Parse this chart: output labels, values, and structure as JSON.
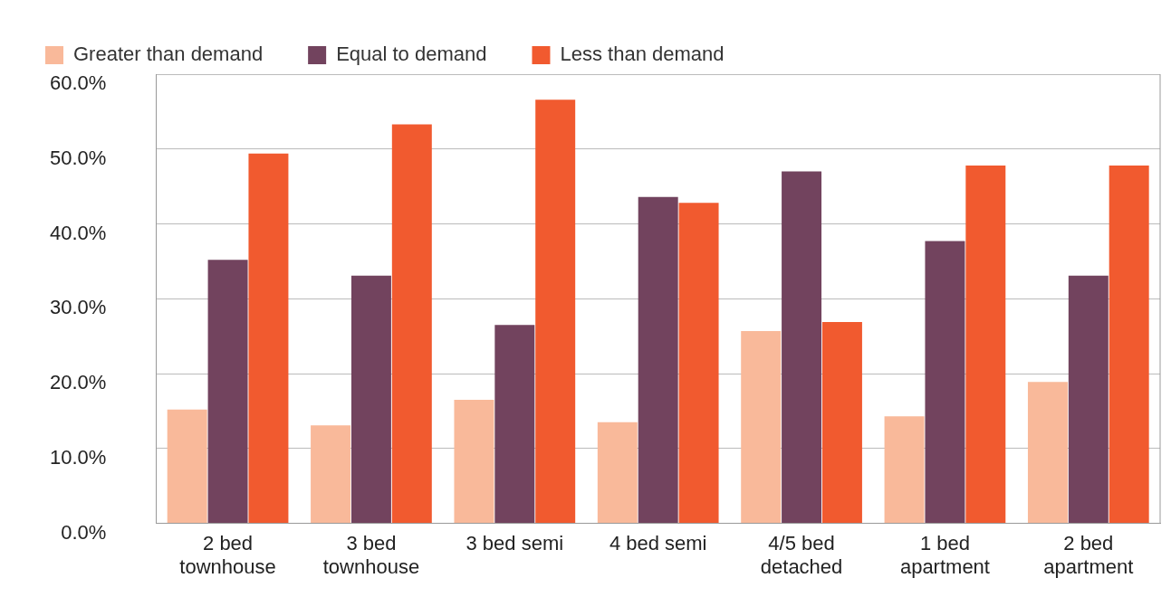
{
  "chart_data": {
    "type": "bar",
    "categories": [
      "2 bed townhouse",
      "3 bed townhouse",
      "3 bed semi",
      "4 bed semi",
      "4/5 bed detached",
      "1 bed apartment",
      "2 bed apartment"
    ],
    "series": [
      {
        "name": "Greater than demand",
        "color": "#f9b99a",
        "values": [
          15.2,
          13.1,
          16.5,
          13.5,
          25.7,
          14.3,
          18.9
        ]
      },
      {
        "name": "Equal to demand",
        "color": "#72435e",
        "values": [
          35.2,
          33.1,
          26.5,
          43.6,
          47.0,
          37.7,
          33.1
        ]
      },
      {
        "name": "Less than demand",
        "color": "#f15a2f",
        "values": [
          49.4,
          53.3,
          56.6,
          42.8,
          26.9,
          47.8,
          47.8
        ]
      }
    ],
    "ylim": [
      0,
      60
    ],
    "yticks": [
      {
        "value": 0,
        "label": "0.0%"
      },
      {
        "value": 10,
        "label": "10.0%"
      },
      {
        "value": 20,
        "label": "20.0%"
      },
      {
        "value": 30,
        "label": "30.0%"
      },
      {
        "value": 40,
        "label": "40.0%"
      },
      {
        "value": 50,
        "label": "50.0%"
      },
      {
        "value": 60,
        "label": "60.0%"
      }
    ],
    "grid": "y",
    "legend": "top left"
  }
}
